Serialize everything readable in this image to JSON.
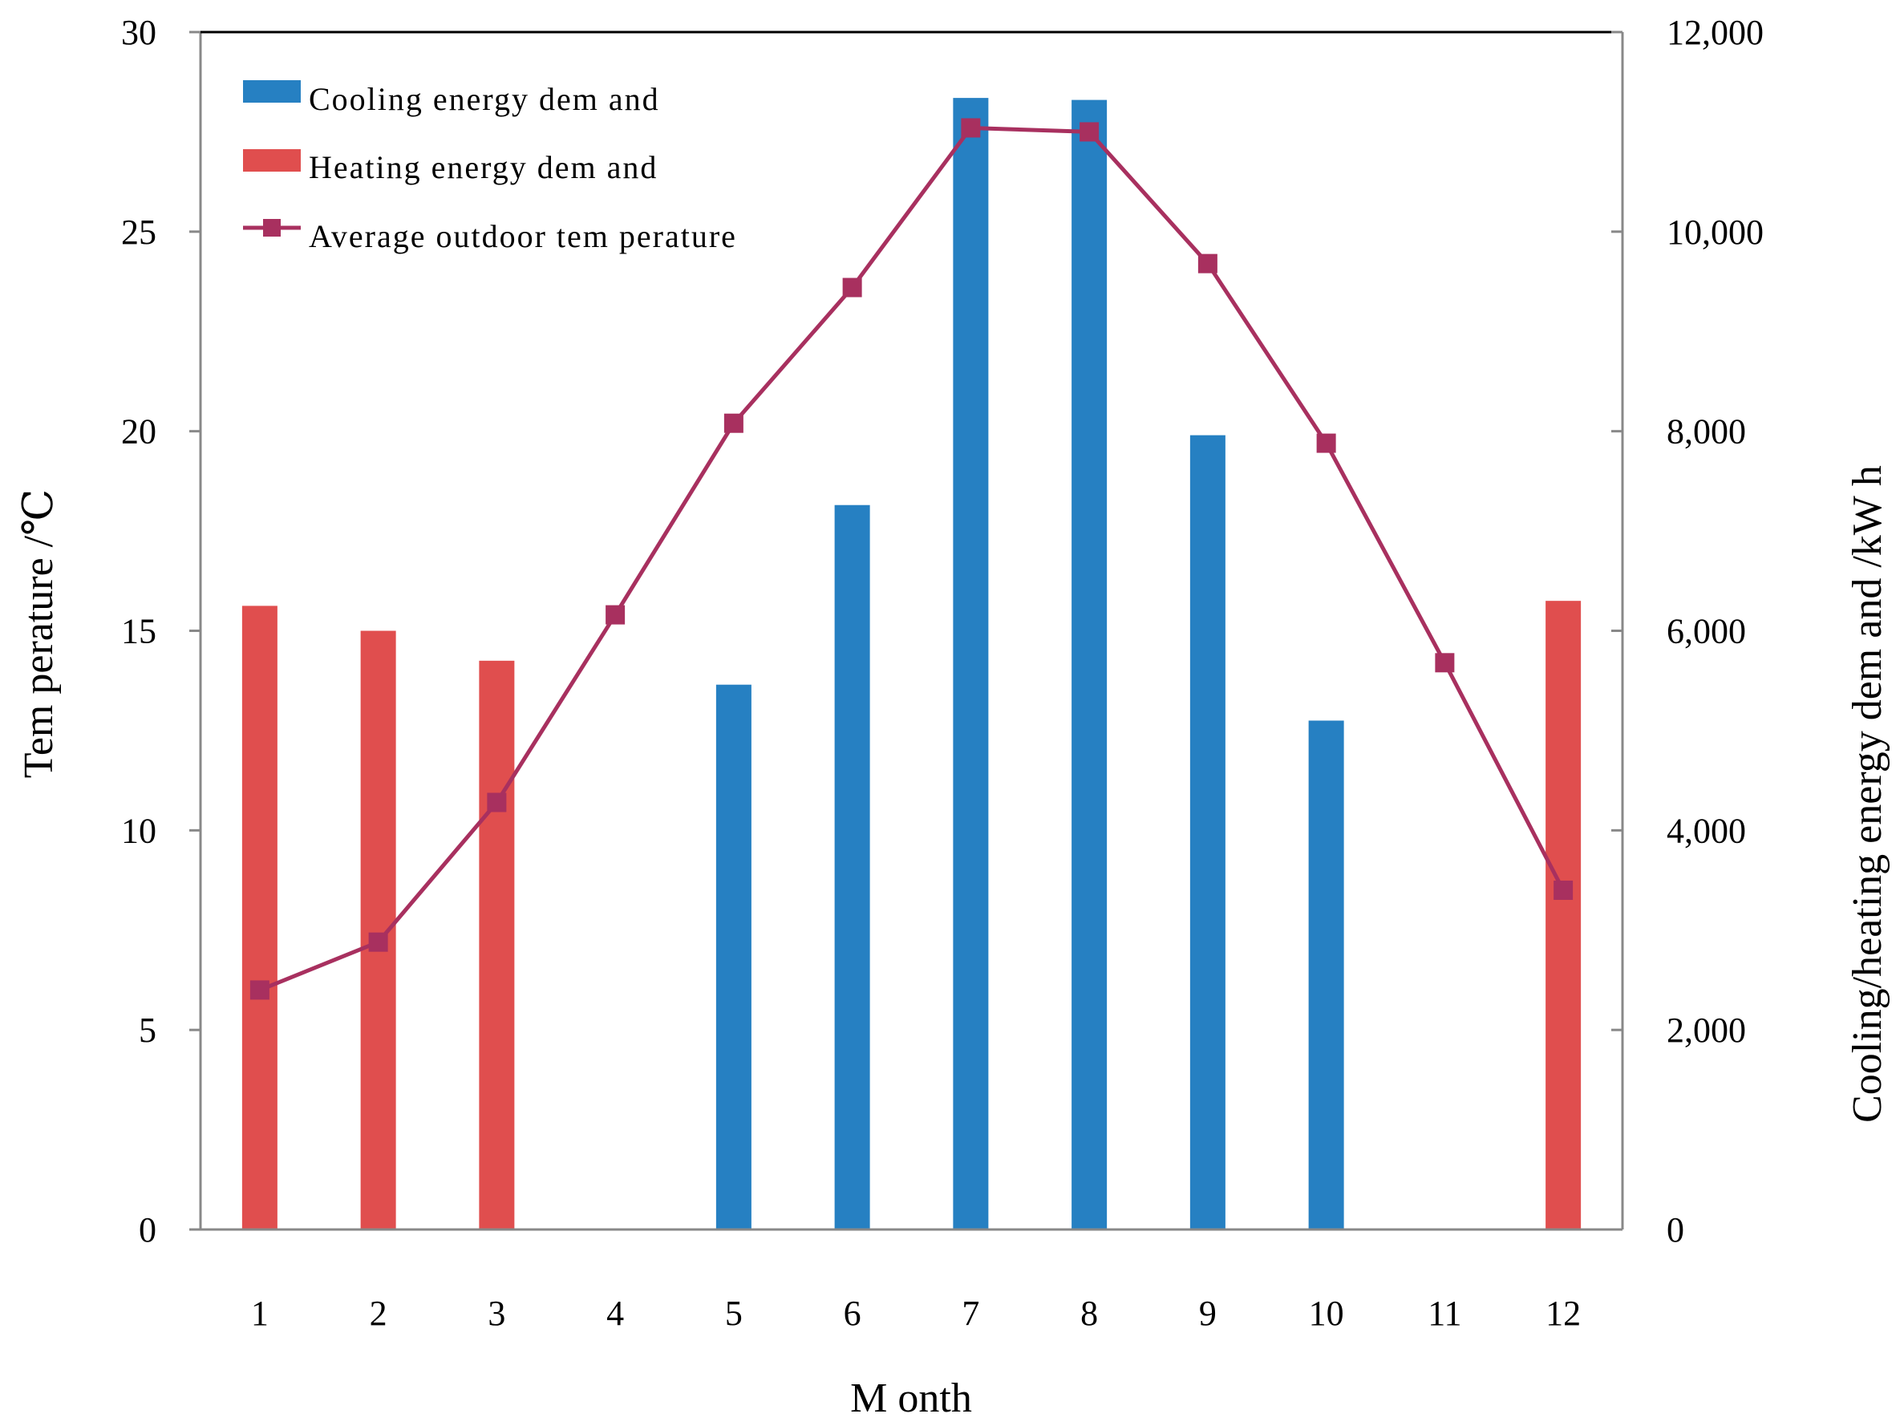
{
  "chart_data": {
    "type": "bar+line",
    "categories": [
      "1",
      "2",
      "3",
      "4",
      "5",
      "6",
      "7",
      "8",
      "9",
      "10",
      "11",
      "12"
    ],
    "xlabel": "M onth",
    "ylabel_left": "Tem perature /℃",
    "ylabel_right": "Cooling/heating energy dem and /kW h",
    "ylim_left": [
      0,
      30
    ],
    "ylim_right": [
      0,
      12000
    ],
    "yticks_left": [
      "0",
      "5",
      "10",
      "15",
      "20",
      "25",
      "30"
    ],
    "yticks_right": [
      "0",
      "2,000",
      "4,000",
      "6,000",
      "8,000",
      "10,000",
      "12,000"
    ],
    "series": [
      {
        "name": "Cooling energy dem and",
        "kind": "bar",
        "axis": "right",
        "color": "#2680c2",
        "values": [
          0,
          0,
          0,
          0,
          5460,
          7260,
          11340,
          11320,
          7960,
          5100,
          0,
          0
        ]
      },
      {
        "name": "Heating energy dem and",
        "kind": "bar",
        "axis": "right",
        "color": "#e04e4e",
        "values": [
          6250,
          6000,
          5700,
          0,
          0,
          0,
          0,
          0,
          0,
          0,
          0,
          6300
        ]
      },
      {
        "name": "Average outdoor tem perature",
        "kind": "line",
        "axis": "left",
        "color": "#a8305f",
        "values": [
          6.0,
          7.2,
          10.7,
          15.4,
          20.2,
          23.6,
          27.6,
          27.5,
          24.2,
          19.7,
          14.2,
          8.5
        ]
      }
    ],
    "legend_position": "top-left"
  }
}
